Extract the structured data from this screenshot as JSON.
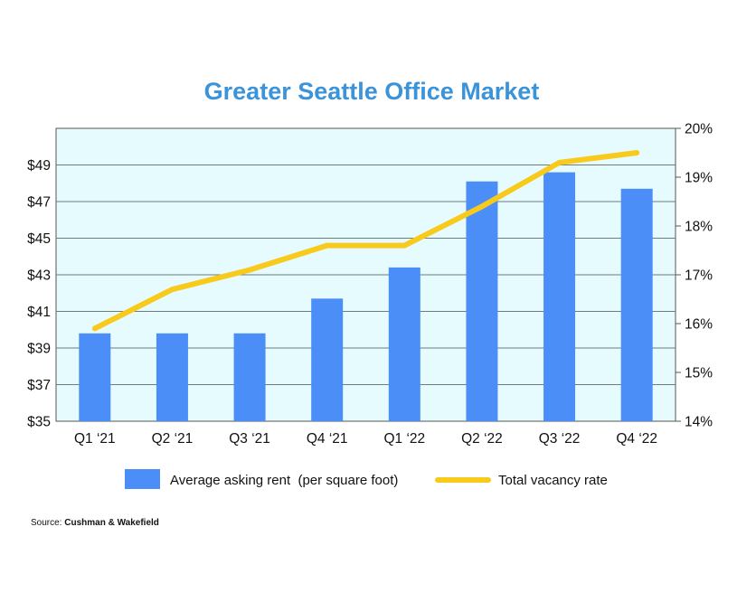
{
  "chart_data": {
    "type": "bar",
    "title": "Greater Seattle Office Market",
    "categories": [
      "Q1 ‘21",
      "Q2 ‘21",
      "Q3 ‘21",
      "Q4 ‘21",
      "Q1 ‘22",
      "Q2 ‘22",
      "Q3 ‘22",
      "Q4 ‘22"
    ],
    "series": [
      {
        "name": "Average asking rent  (per square foot)",
        "type": "bar",
        "axis": "left",
        "color": "#4b8ef7",
        "values": [
          39.8,
          39.8,
          39.8,
          41.7,
          43.4,
          48.1,
          48.6,
          47.7
        ]
      },
      {
        "name": "Total vacancy rate",
        "type": "line",
        "axis": "right",
        "color": "#f7ca1c",
        "values": [
          15.9,
          16.7,
          17.1,
          17.6,
          17.6,
          18.4,
          19.3,
          19.5
        ]
      }
    ],
    "left_axis": {
      "ticks": [
        "$35",
        "$37",
        "$39",
        "$41",
        "$43",
        "$45",
        "$47",
        "$49"
      ],
      "ylim": [
        35,
        51
      ]
    },
    "right_axis": {
      "ticks": [
        "14%",
        "15%",
        "16%",
        "17%",
        "18%",
        "19%",
        "20%"
      ],
      "ylim": [
        14,
        20
      ]
    },
    "grid": true,
    "legend_position": "bottom",
    "plot_background": "#e6fbfd"
  },
  "source": {
    "label": "Source: ",
    "name": "Cushman & Wakefield"
  }
}
